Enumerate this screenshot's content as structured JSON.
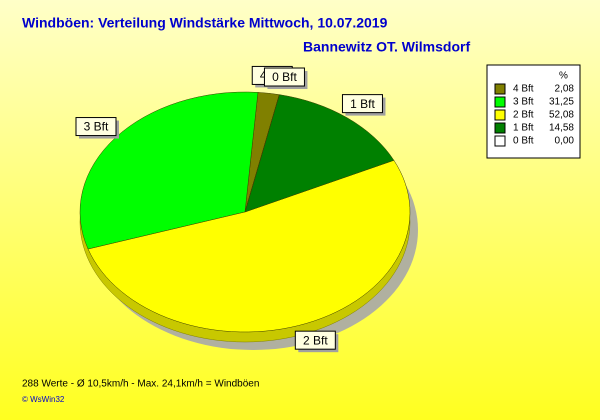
{
  "chart_data": {
    "type": "pie",
    "title": "Windböen: Verteilung Windstärke  Mittwoch, 10.07.2019",
    "subtitle": "Bannewitz OT. Wilmsdorf",
    "legend_header": "%",
    "categories": [
      "4 Bft",
      "3 Bft",
      "2 Bft",
      "1 Bft",
      "0 Bft"
    ],
    "values": [
      2.08,
      31.25,
      52.08,
      14.58,
      0
    ],
    "value_labels": [
      "2,08",
      "31,25",
      "52,08",
      "14,58",
      "0,00"
    ],
    "colors": [
      "#808000",
      "#00ff00",
      "#ffff00",
      "#008000",
      "#ffffff"
    ],
    "legend": "top-right",
    "footnote": "288 Werte   -   Ø 10,5km/h  -  Max. 24,1km/h = Windböen",
    "copyright": "© WsWin32"
  }
}
